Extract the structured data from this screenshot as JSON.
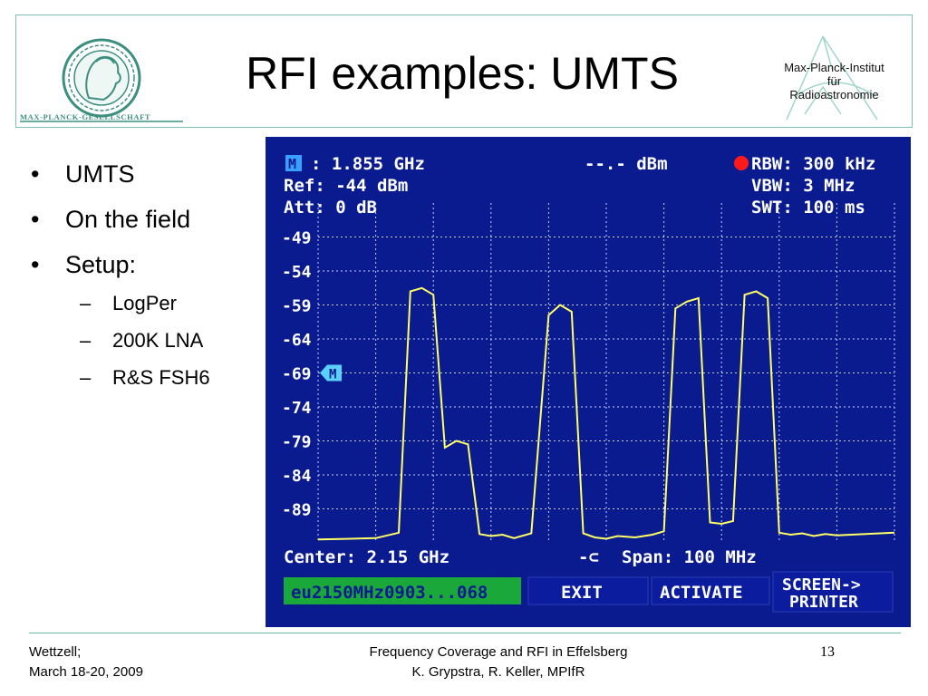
{
  "header": {
    "title": "RFI examples: UMTS",
    "left_logo_text": "MAX-PLANCK-GESELLSCHAFT",
    "right_logo_lines": [
      "Max-Planck-Institut",
      "für",
      "Radioastronomie"
    ]
  },
  "bullets": {
    "items": [
      "UMTS",
      "On the field",
      "Setup:"
    ],
    "sub_items": [
      "LogPer",
      "200K LNA",
      "R&S FSH6"
    ]
  },
  "analyzer": {
    "marker_freq": ": 1.855 GHz",
    "marker_level": "--.- dBm",
    "ref": "Ref: -44 dBm",
    "att": "Att: 0 dB",
    "rbw": "RBW: 300 kHz",
    "vbw": "VBW: 3 MHz",
    "swt": "SWT: 100 ms",
    "y_ticks": [
      "-49",
      "-54",
      "-59",
      "-64",
      "-69",
      "-74",
      "-79",
      "-84",
      "-89"
    ],
    "center": "Center: 2.15 GHz",
    "span": "Span: 100 MHz",
    "softkeys": {
      "filename": "eu2150MHz0903...068",
      "exit": "EXIT",
      "activate": "ACTIVATE",
      "screen_printer_line1": "SCREEN->",
      "screen_printer_line2": "PRINTER"
    },
    "colors": {
      "background": "#0a1a8f",
      "trace": "#ffff66",
      "text": "#ffffff",
      "rbw_dot": "#ff1a1a",
      "filename_bg": "#1aa83a"
    }
  },
  "chart_data": {
    "type": "line",
    "x_unit": "GHz",
    "y_unit": "dBm",
    "xlim": [
      2.1,
      2.2
    ],
    "ylim": [
      -94,
      -44
    ],
    "x": [
      2.1,
      2.11,
      2.114,
      2.116,
      2.118,
      2.12,
      2.122,
      2.124,
      2.126,
      2.128,
      2.13,
      2.132,
      2.134,
      2.137,
      2.14,
      2.142,
      2.144,
      2.146,
      2.148,
      2.15,
      2.152,
      2.155,
      2.158,
      2.16,
      2.162,
      2.164,
      2.166,
      2.168,
      2.17,
      2.172,
      2.174,
      2.176,
      2.178,
      2.18,
      2.182,
      2.184,
      2.186,
      2.188,
      2.19,
      2.2
    ],
    "y": [
      -93.5,
      -93.3,
      -92.5,
      -57.0,
      -56.5,
      -57.5,
      -80.0,
      -79.0,
      -79.5,
      -92.7,
      -93.0,
      -92.8,
      -93.3,
      -92.6,
      -60.5,
      -59.0,
      -60.0,
      -92.6,
      -93.2,
      -93.4,
      -93.0,
      -93.2,
      -92.8,
      -92.3,
      -59.5,
      -58.5,
      -58.0,
      -91.0,
      -91.2,
      -90.8,
      -57.5,
      -57.0,
      -58.0,
      -92.5,
      -92.8,
      -92.6,
      -93.0,
      -92.7,
      -92.9,
      -92.5
    ],
    "marker": {
      "level_dBm": -69
    }
  },
  "footer": {
    "left_line1": "Wettzell;",
    "left_line2": "March 18-20, 2009",
    "center_line1": "Frequency Coverage and RFI in Effelsberg",
    "center_line2": "K. Grypstra, R. Keller, MPIfR",
    "page_number": "13"
  }
}
